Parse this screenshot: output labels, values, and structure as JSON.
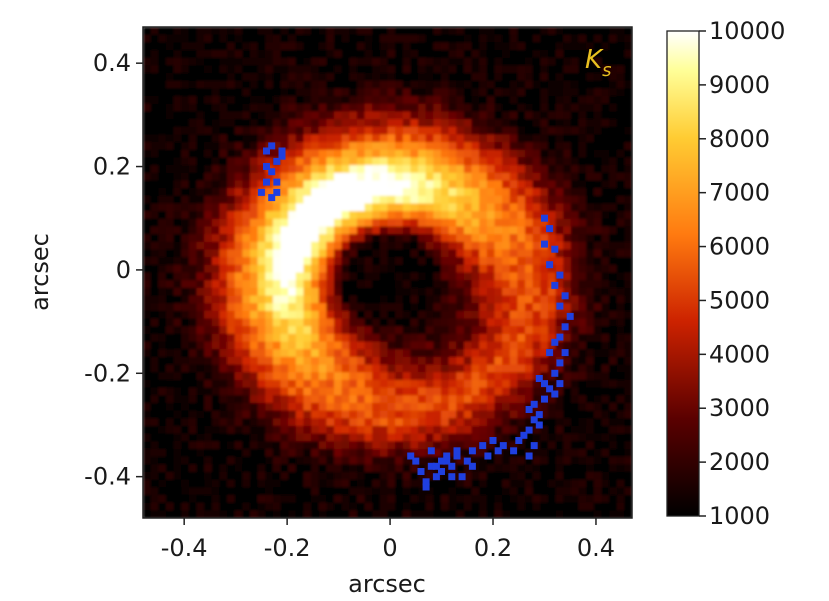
{
  "chart_data": {
    "type": "heatmap",
    "title": "",
    "xlabel": "arcsec",
    "ylabel": "arcsec",
    "xlim": [
      -0.48,
      0.47
    ],
    "ylim": [
      -0.48,
      0.47
    ],
    "x_ticks": [
      -0.4,
      -0.2,
      0,
      0.2,
      0.4
    ],
    "x_tick_labels": [
      "-0.4",
      "-0.2",
      "0",
      "0.2",
      "0.4"
    ],
    "y_ticks": [
      0.4,
      0.2,
      0,
      -0.2,
      -0.4
    ],
    "y_tick_labels": [
      "0.4",
      "0.2",
      "0",
      "-0.2",
      "-0.4"
    ],
    "band_label": "Ks",
    "band_label_color": "#e8c020",
    "colormap": "afmhot",
    "colorbar": {
      "range": [
        1000,
        10000
      ],
      "ticks": [
        10000,
        9000,
        8000,
        7000,
        6000,
        5000,
        4000,
        3000,
        2000,
        1000
      ],
      "tick_labels": [
        "10000",
        "9000",
        "8000",
        "7000",
        "6000",
        "5000",
        "4000",
        "3000",
        "2000",
        "1000"
      ]
    },
    "image_structure": {
      "ring_center": [
        0.0,
        -0.02
      ],
      "inner_cavity_radius": 0.11,
      "ring_peak_radius": 0.2,
      "bright_side": "north-east"
    },
    "marker_color": "#1f3fe0",
    "series": [
      {
        "x": [
          -0.24,
          -0.23,
          -0.22,
          -0.21,
          -0.23,
          -0.24,
          -0.22,
          -0.25,
          -0.23,
          -0.21,
          -0.24,
          -0.22,
          0.3,
          0.31,
          0.3,
          0.32,
          0.31,
          0.33,
          0.32,
          0.34,
          0.33,
          0.35,
          0.34,
          0.33,
          0.32,
          0.34,
          0.33,
          0.31,
          0.32,
          0.33,
          0.32,
          0.31,
          0.3,
          0.29,
          0.28,
          0.29,
          0.28,
          0.27,
          0.27,
          0.26,
          0.28,
          0.27,
          0.29,
          0.3,
          0.25,
          0.24,
          0.22,
          0.2,
          0.18,
          0.16,
          0.15,
          0.13,
          0.12,
          0.11,
          0.1,
          0.09,
          0.08,
          0.07,
          0.06,
          0.05,
          0.04,
          0.07,
          0.09,
          0.11,
          0.13,
          0.14,
          0.16,
          0.19,
          0.21,
          0.08,
          0.1,
          0.12
        ],
        "y": [
          0.23,
          0.24,
          0.21,
          0.23,
          0.19,
          0.17,
          0.17,
          0.15,
          0.14,
          0.22,
          0.2,
          0.15,
          0.1,
          0.08,
          0.05,
          0.04,
          0.01,
          -0.01,
          -0.03,
          -0.05,
          -0.07,
          -0.09,
          -0.11,
          -0.13,
          -0.14,
          -0.16,
          -0.18,
          -0.16,
          -0.2,
          -0.22,
          -0.24,
          -0.23,
          -0.22,
          -0.21,
          -0.26,
          -0.28,
          -0.29,
          -0.27,
          -0.31,
          -0.32,
          -0.34,
          -0.36,
          -0.3,
          -0.25,
          -0.33,
          -0.35,
          -0.34,
          -0.33,
          -0.34,
          -0.35,
          -0.37,
          -0.36,
          -0.38,
          -0.37,
          -0.39,
          -0.4,
          -0.38,
          -0.41,
          -0.39,
          -0.37,
          -0.36,
          -0.42,
          -0.38,
          -0.36,
          -0.35,
          -0.4,
          -0.38,
          -0.36,
          -0.35,
          -0.35,
          -0.37,
          -0.4
        ]
      }
    ]
  }
}
